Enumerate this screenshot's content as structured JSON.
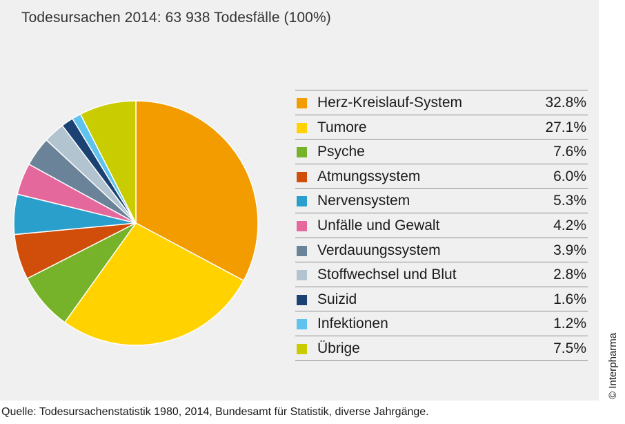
{
  "title": "Todesursachen 2014: 63 938 Todesfälle (100%)",
  "source": "Quelle: Todesursachenstatistik 1980, 2014, Bundesamt für Statistik, diverse Jahrgänge.",
  "copyright": "© Interpharma",
  "chart_data": {
    "type": "pie",
    "title": "Todesursachen 2014: 63 938 Todesfälle (100%)",
    "unit": "%",
    "slices": [
      {
        "label": "Herz-Kreislauf-System",
        "value": 32.8,
        "display": "32.8%",
        "color": "#f39c00"
      },
      {
        "label": "Tumore",
        "value": 27.1,
        "display": "27.1%",
        "color": "#ffd200"
      },
      {
        "label": "Psyche",
        "value": 7.6,
        "display": "7.6%",
        "color": "#76b32a"
      },
      {
        "label": "Atmungssystem",
        "value": 6.0,
        "display": "6.0%",
        "color": "#d14e0a"
      },
      {
        "label": "Nervensystem",
        "value": 5.3,
        "display": "5.3%",
        "color": "#2a9fcb"
      },
      {
        "label": "Unfälle und Gewalt",
        "value": 4.2,
        "display": "4.2%",
        "color": "#e5689d"
      },
      {
        "label": "Verdauungssystem",
        "value": 3.9,
        "display": "3.9%",
        "color": "#6b8399"
      },
      {
        "label": "Stoffwechsel und Blut",
        "value": 2.8,
        "display": "2.8%",
        "color": "#b3c4d1"
      },
      {
        "label": "Suizid",
        "value": 1.6,
        "display": "1.6%",
        "color": "#1b4272"
      },
      {
        "label": "Infektionen",
        "value": 1.2,
        "display": "1.2%",
        "color": "#5fc3ee"
      },
      {
        "label": "Übrige",
        "value": 7.5,
        "display": "7.5%",
        "color": "#c8cc00"
      }
    ],
    "legend_position": "right"
  }
}
